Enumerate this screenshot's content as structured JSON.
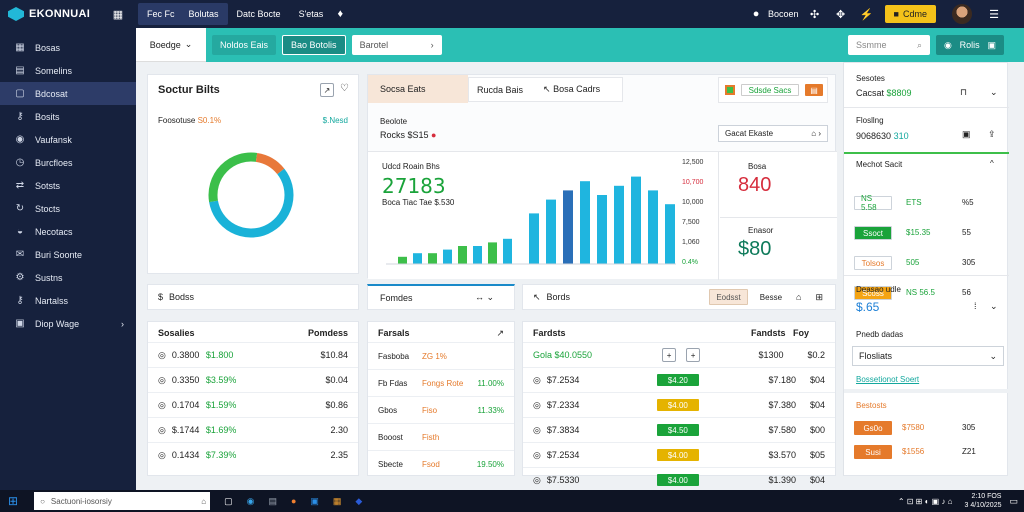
{
  "app": {
    "name": "EKONNUAI"
  },
  "topbar": {
    "tabs": [
      "Fec Fc",
      "Bolutas",
      "Datc Bocte",
      "S'etas"
    ],
    "user": "Bocoen",
    "upgrade": "Cdme",
    "active_tab": "Bolutas"
  },
  "sidebar": {
    "items": [
      {
        "label": "Bosas",
        "icon": "grid-icon"
      },
      {
        "label": "Somelins",
        "icon": "list-icon"
      },
      {
        "label": "Bdcosat",
        "icon": "folder-icon",
        "active": true
      },
      {
        "label": "Bosits",
        "icon": "key-icon"
      },
      {
        "label": "Vaufansk",
        "icon": "eye-icon"
      },
      {
        "label": "Burcfloes",
        "icon": "clock-icon"
      },
      {
        "label": "Sotsts",
        "icon": "share-icon"
      },
      {
        "label": "Stocts",
        "icon": "refresh-icon"
      },
      {
        "label": "Necotacs",
        "icon": "users-icon"
      },
      {
        "label": "Buri Soonte",
        "icon": "mail-icon"
      },
      {
        "label": "Sustns",
        "icon": "settings-icon"
      },
      {
        "label": "Nartalss",
        "icon": "key-icon"
      },
      {
        "label": "Diop Wage",
        "icon": "image-icon"
      }
    ]
  },
  "subbar": {
    "dropdown": "Boedge",
    "pill1": "Noldos Eais",
    "pill2": "Bao Botolis",
    "select_value": "Barotel",
    "search_placeholder": "Ssmme",
    "action": "Rolis"
  },
  "donut_card": {
    "title": "Soctur Bilts",
    "stat_label": "Foosotuse",
    "stat_value": "S0.1%",
    "stat_right": "$.Nesd",
    "chart_data": {
      "type": "pie",
      "series": [
        {
          "value": 58,
          "color": "#1ab2d8"
        },
        {
          "value": 30,
          "color": "#3bbf4a"
        },
        {
          "value": 12,
          "color": "#e8783a"
        }
      ]
    }
  },
  "mid_card": {
    "tabs": [
      "Socsa Eats",
      "Rucda Bais",
      "Bosa Cadrs"
    ],
    "label": "Beolote",
    "value_line": "Rocks $S15",
    "filter": "Gacat Ekaste",
    "left_label": "Udcd Roain Bhs",
    "big_value": "27183",
    "sub_label": "Boca Tiac Tae $.530",
    "side_top_label": "Bosa",
    "side_top_value": "840",
    "side_bottom_label": "Enasor",
    "side_bottom_value": "$80",
    "chart_data": {
      "type": "bar",
      "y_ticks": [
        "12,500",
        "10,700",
        "10,000",
        "7,500",
        "1,060",
        "0.4%"
      ],
      "series": [
        {
          "values": [
            2,
            3,
            3,
            4,
            5,
            5,
            6,
            7
          ],
          "color_primary": "#1fb5df",
          "color_secondary": "#3dbf4a"
        },
        {
          "values": [
            11,
            14,
            16,
            18,
            15,
            17,
            19,
            16,
            13
          ],
          "color_primary": "#1fb5df",
          "color_secondary": "#2a6fb8"
        }
      ]
    }
  },
  "right_panel": {
    "s1_label": "Sesotes",
    "s1_value": "Cacsat",
    "s1_amount": "$8809",
    "s2_label": "Flosllng",
    "s2_value": "9068630",
    "s2_num": "310",
    "s3_label": "Mechot Sacit",
    "rows": [
      {
        "chip": "NS 5.58",
        "chip_color": "#ffffff",
        "text_color": "#1aa33a",
        "v1": "ETS",
        "v2": "%5"
      },
      {
        "chip": "Ssoct",
        "chip_color": "#1aa33a",
        "text_color": "#ffffff",
        "v1": "$15.35",
        "v2": "55"
      },
      {
        "chip": "Tolsos",
        "chip_color": "#ffffff",
        "text_color": "#e57a2b",
        "v1": "505",
        "v2": "305"
      },
      {
        "chip": "Scoss",
        "chip_color": "#f4a413",
        "text_color": "#ffffff",
        "v1": "NS 56.5",
        "v2": "56"
      }
    ],
    "s4_label": "Deasao udle",
    "s4_value": "$.65",
    "s5_label": "Pnedb dadas",
    "select": "Flosliats",
    "link": "Bossetionot Soert",
    "s6_label": "Bestosts",
    "bottom_rows": [
      {
        "chip": "Gs0o",
        "v": "$7580",
        "n": "305"
      },
      {
        "chip": "Susi",
        "v": "$1556",
        "n": "Z21"
      }
    ]
  },
  "row2": {
    "left": "Bodss",
    "center": "Fomdes",
    "right_label": "Bords",
    "btn1": "Eodsst",
    "btn2": "Besse"
  },
  "table1": {
    "headers": [
      "Sosalies",
      "Pomdess"
    ],
    "rows": [
      {
        "a": "0.3800",
        "b": "$1.800",
        "c": "$10.84"
      },
      {
        "a": "0.3350",
        "b": "$3.59%",
        "c": "$0.04"
      },
      {
        "a": "0.1704",
        "b": "$1.59%",
        "c": "$0.86"
      },
      {
        "a": "$.1744",
        "b": "$1.69%",
        "c": "2.30"
      },
      {
        "a": "0.1434",
        "b": "$7.39%",
        "c": "2.35"
      }
    ]
  },
  "table2": {
    "header": "Farsals",
    "rows": [
      {
        "a": "Fasboba",
        "b": "ZG 1%",
        "c": ""
      },
      {
        "a": "Fb Fdas",
        "b": "Fongs Rote",
        "c": "11.00%"
      },
      {
        "a": "Gbos",
        "b": "Fiso",
        "c": "11.33%"
      },
      {
        "a": "Booost",
        "b": "Fisth",
        "c": ""
      },
      {
        "a": "Sbecte",
        "b": "Fsod",
        "c": "19.50%"
      }
    ]
  },
  "table3": {
    "headers": [
      "Fardsts",
      "Fandsts",
      "Foy"
    ],
    "first": "Gola $40.0550",
    "rows": [
      {
        "a": "$7.2534",
        "chip": "$4.20",
        "chip_color": "#1aa33a",
        "v": "$7.180",
        "n": "$04"
      },
      {
        "a": "$7.2334",
        "chip": "$4.00",
        "chip_color": "#e5b300",
        "v": "$7.380",
        "n": "$04"
      },
      {
        "a": "$7.3834",
        "chip": "$4.50",
        "chip_color": "#1aa33a",
        "v": "$7.580",
        "n": "$00"
      },
      {
        "a": "$7.2534",
        "chip": "$4.00",
        "chip_color": "#e5b300",
        "v": "$3.570",
        "n": "$05"
      },
      {
        "a": "$7.5330",
        "chip": "$4.00",
        "chip_color": "#1aa33a",
        "v": "$1.390",
        "n": "$04"
      }
    ],
    "col_b": "$1300",
    "col_c": "$0.2"
  },
  "taskbar": {
    "search": "Sactuoni-iosorsiy",
    "time": "2:10 FOS",
    "date": "3 4/10/2025"
  }
}
